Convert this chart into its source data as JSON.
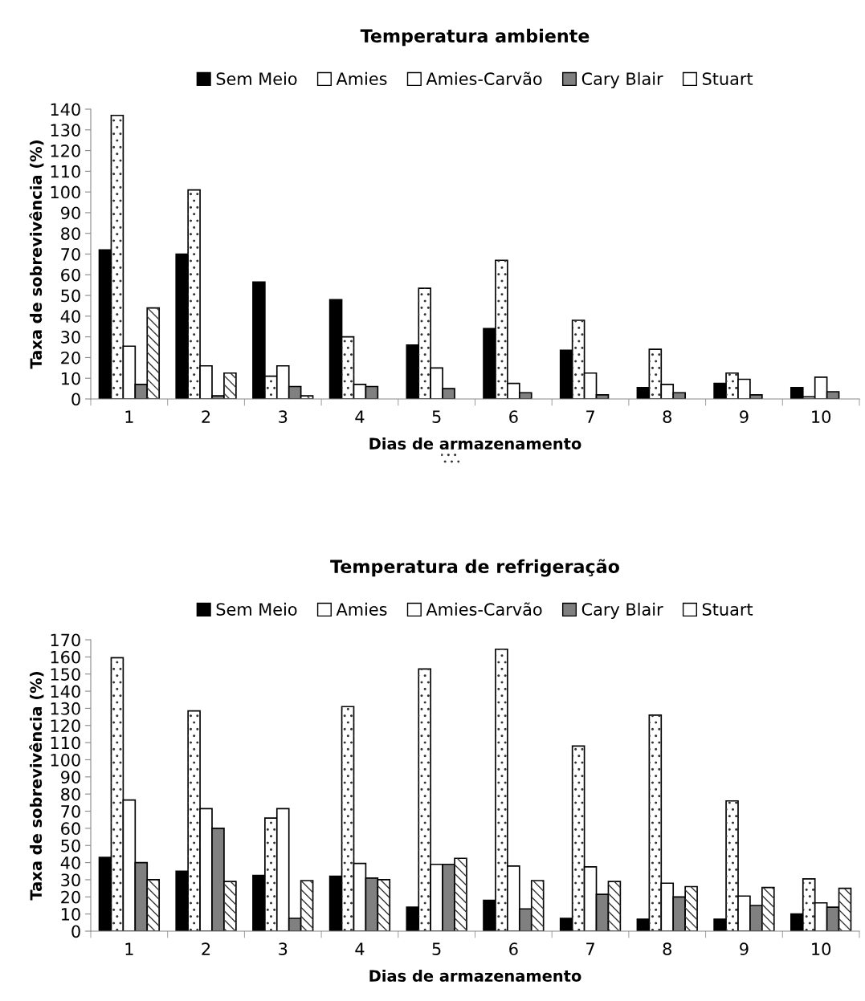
{
  "chart_data": [
    {
      "type": "bar",
      "title": "Temperatura ambiente",
      "xlabel": "Dias de armazenamento",
      "ylabel": "Taxa de sobrevivência (%)",
      "categories": [
        "1",
        "2",
        "3",
        "4",
        "5",
        "6",
        "7",
        "8",
        "9",
        "10"
      ],
      "ylim": [
        0,
        140
      ],
      "yticks": [
        0,
        10,
        20,
        30,
        40,
        50,
        60,
        70,
        80,
        90,
        100,
        110,
        120,
        130,
        140
      ],
      "grid": false,
      "legend": "top",
      "series": [
        {
          "name": "Sem Meio",
          "color": "#000000",
          "values": [
            72,
            70,
            56.5,
            48,
            26,
            34,
            23.5,
            5.5,
            7.5,
            5.5
          ]
        },
        {
          "name": "Amies",
          "color": "#ffffff",
          "values": [
            137,
            101,
            11,
            30,
            53.5,
            67,
            38,
            24,
            12.5,
            1
          ]
        },
        {
          "name": "Amies-Carvão",
          "color": "#ffffff",
          "values": [
            25.5,
            16,
            16,
            7,
            15,
            7.5,
            12.5,
            7,
            9.5,
            10.5
          ]
        },
        {
          "name": "Cary Blair",
          "color": "#808080",
          "values": [
            7,
            1.5,
            6,
            6,
            5,
            3,
            2,
            3,
            2,
            3.5
          ]
        },
        {
          "name": "Stuart",
          "color": "#ffffff",
          "values": [
            44,
            12.5,
            1.5,
            null,
            null,
            null,
            null,
            null,
            null,
            null
          ]
        }
      ]
    },
    {
      "type": "bar",
      "title": "Temperatura de refrigeração",
      "xlabel": "Dias de armazenamento",
      "ylabel": "Taxa de sobrevivência (%)",
      "categories": [
        "1",
        "2",
        "3",
        "4",
        "5",
        "6",
        "7",
        "8",
        "9",
        "10"
      ],
      "ylim": [
        0,
        170
      ],
      "yticks": [
        0,
        10,
        20,
        30,
        40,
        50,
        60,
        70,
        80,
        90,
        100,
        110,
        120,
        130,
        140,
        150,
        160,
        170
      ],
      "grid": false,
      "legend": "top",
      "series": [
        {
          "name": "Sem Meio",
          "color": "#000000",
          "values": [
            43,
            35,
            32.5,
            32,
            14,
            18,
            7.5,
            7,
            7,
            10
          ]
        },
        {
          "name": "Amies",
          "color": "#ffffff",
          "values": [
            159.5,
            128.5,
            66,
            131,
            153,
            164.5,
            108,
            126,
            76,
            30.5
          ]
        },
        {
          "name": "Amies-Carvão",
          "color": "#ffffff",
          "values": [
            76.5,
            71.5,
            71.5,
            39.5,
            39,
            38,
            37.5,
            28,
            20.5,
            16.5
          ]
        },
        {
          "name": "Cary Blair",
          "color": "#808080",
          "values": [
            40,
            60,
            7.5,
            31,
            39,
            13,
            21.5,
            20,
            15,
            14
          ]
        },
        {
          "name": "Stuart",
          "color": "#ffffff",
          "values": [
            30,
            29,
            29.5,
            30,
            42.5,
            29.5,
            29,
            26,
            25.5,
            25
          ]
        }
      ]
    }
  ]
}
